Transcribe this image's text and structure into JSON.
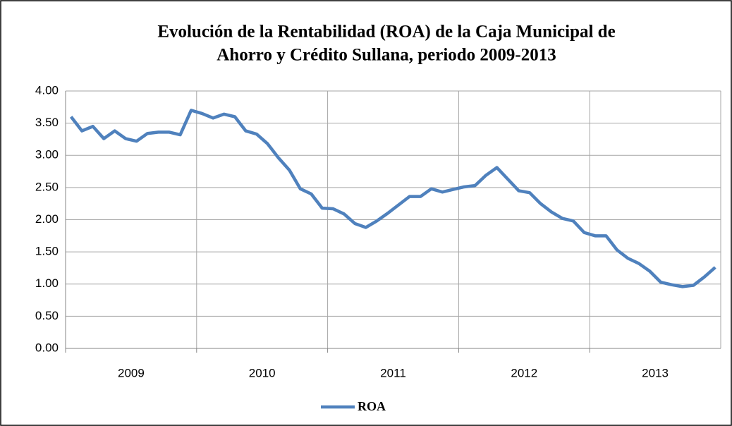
{
  "chart_data": {
    "type": "line",
    "title": [
      "Evolución de la Rentabilidad (ROA) de la Caja Municipal de",
      "Ahorro y Crédito Sullana, periodo 2009-2013"
    ],
    "year_labels": [
      "2009",
      "2010",
      "2011",
      "2012",
      "2013"
    ],
    "series": [
      {
        "name": "ROA",
        "color": "#4f81bd",
        "values": [
          3.6,
          3.38,
          3.45,
          3.26,
          3.38,
          3.26,
          3.22,
          3.34,
          3.36,
          3.36,
          3.32,
          3.7,
          3.65,
          3.58,
          3.64,
          3.6,
          3.38,
          3.33,
          3.18,
          2.96,
          2.77,
          2.48,
          2.4,
          2.18,
          2.17,
          2.09,
          1.94,
          1.88,
          1.98,
          2.1,
          2.23,
          2.36,
          2.36,
          2.48,
          2.43,
          2.47,
          2.51,
          2.53,
          2.69,
          2.81,
          2.63,
          2.45,
          2.42,
          2.25,
          2.12,
          2.02,
          1.98,
          1.8,
          1.75,
          1.75,
          1.53,
          1.4,
          1.32,
          1.2,
          1.03,
          0.99,
          0.96,
          0.98,
          1.11,
          1.26
        ]
      }
    ],
    "ylim": [
      0,
      4
    ],
    "yticks": [
      {
        "value": 0,
        "label": "0.00"
      },
      {
        "value": 0.5,
        "label": "0.50"
      },
      {
        "value": 1,
        "label": "1.00"
      },
      {
        "value": 1.5,
        "label": "1.50"
      },
      {
        "value": 2,
        "label": "2.00"
      },
      {
        "value": 2.5,
        "label": "2.50"
      },
      {
        "value": 3,
        "label": "3.00"
      },
      {
        "value": 3.5,
        "label": "3.50"
      },
      {
        "value": 4,
        "label": "4.00"
      }
    ],
    "grid": true,
    "legend": "bottom"
  }
}
